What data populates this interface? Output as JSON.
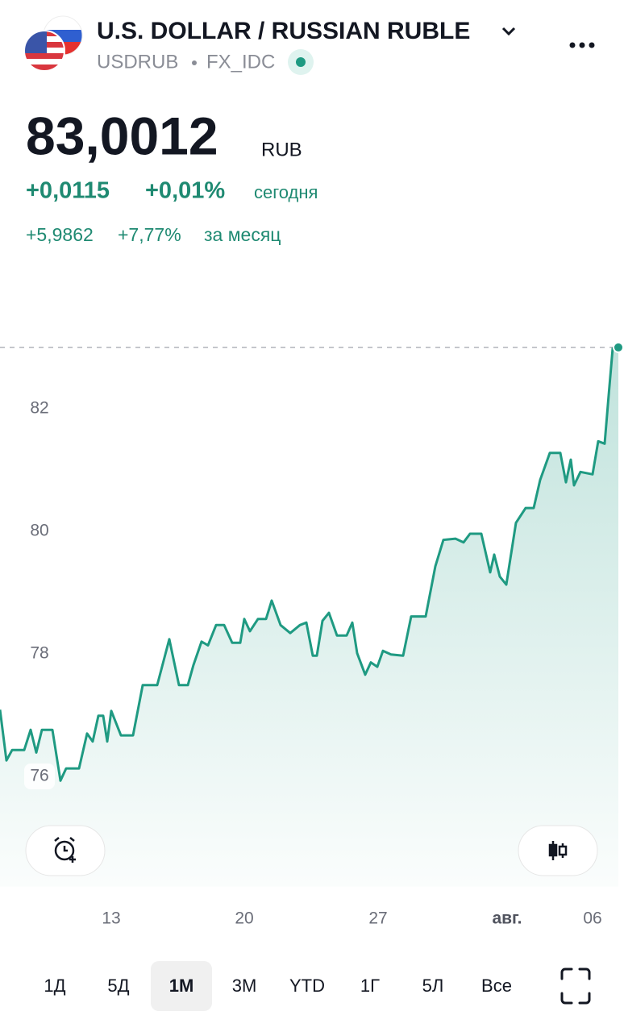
{
  "header": {
    "title": "U.S. DOLLAR / RUSSIAN RUBLE",
    "symbol": "USDRUB",
    "exchange": "FX_IDC"
  },
  "quote": {
    "price": "83,0012",
    "currency": "RUB",
    "change_today": "+0,0115",
    "change_today_pct": "+0,01%",
    "today_label": "сегодня",
    "change_month": "+5,9862",
    "change_month_pct": "+7,77%",
    "month_label": "за месяц"
  },
  "chart_data": {
    "type": "line",
    "color": "#1f9a82",
    "x": [
      0,
      0.8,
      1.5,
      3,
      3.8,
      4.5,
      5.2,
      6.5,
      7.5,
      8.2,
      9.8,
      10.8,
      11.5,
      12.2,
      12.8,
      13.3,
      13.8,
      15,
      16.5,
      17.7,
      19.5,
      21,
      22.2,
      23.3,
      24,
      25,
      25.8,
      26.8,
      27.8,
      28.8,
      29.8,
      30.3,
      31,
      32,
      33,
      33.7,
      34.8,
      36,
      37.2,
      38,
      38.8,
      39.3,
      40,
      40.8,
      41.8,
      43,
      43.7,
      44.3,
      45.3,
      46,
      46.8,
      47.5,
      48.5,
      50,
      51,
      52.8,
      54,
      55,
      56.5,
      57.5,
      58.3,
      59.7,
      60.8,
      61.3,
      62,
      62.8,
      64,
      65.2,
      66.2,
      67,
      68.2,
      69.5,
      70.2,
      70.8,
      71.2,
      72,
      73.5,
      74.2,
      75,
      75.5,
      76,
      76.7
    ],
    "values": [
      77.09,
      76.26,
      76.43,
      76.43,
      76.76,
      76.39,
      76.76,
      76.76,
      75.93,
      76.13,
      76.13,
      76.7,
      76.57,
      76.99,
      76.99,
      76.57,
      77.07,
      76.67,
      76.67,
      77.49,
      77.49,
      78.24,
      77.49,
      77.49,
      77.82,
      78.2,
      78.14,
      78.47,
      78.47,
      78.18,
      78.18,
      78.57,
      78.37,
      78.57,
      78.57,
      78.87,
      78.47,
      78.34,
      78.47,
      78.51,
      77.97,
      77.97,
      78.54,
      78.67,
      78.3,
      78.3,
      78.51,
      78.01,
      77.66,
      77.86,
      77.79,
      78.05,
      77.99,
      77.97,
      78.61,
      78.61,
      79.43,
      79.86,
      79.88,
      79.82,
      79.96,
      79.96,
      79.33,
      79.62,
      79.26,
      79.13,
      80.14,
      80.38,
      80.38,
      80.84,
      81.28,
      81.28,
      80.8,
      81.17,
      80.75,
      80.97,
      80.93,
      81.47,
      81.43,
      82.22,
      82.99,
      83.0012
    ],
    "xlim": [
      0,
      77
    ],
    "ylim": [
      74.2,
      83.4
    ],
    "yticks": [
      76,
      78,
      80,
      82
    ],
    "xticks": [
      {
        "value": 13.8,
        "label": "13"
      },
      {
        "value": 30.3,
        "label": "20"
      },
      {
        "value": 46.9,
        "label": "27"
      },
      {
        "value": 62.9,
        "label": "авг."
      },
      {
        "value": 73.5,
        "label": "06"
      }
    ],
    "last_value_line": true
  },
  "ranges": {
    "items": [
      "1Д",
      "5Д",
      "1М",
      "3М",
      "YTD",
      "1Г",
      "5Л",
      "Все"
    ],
    "selected": 2
  }
}
